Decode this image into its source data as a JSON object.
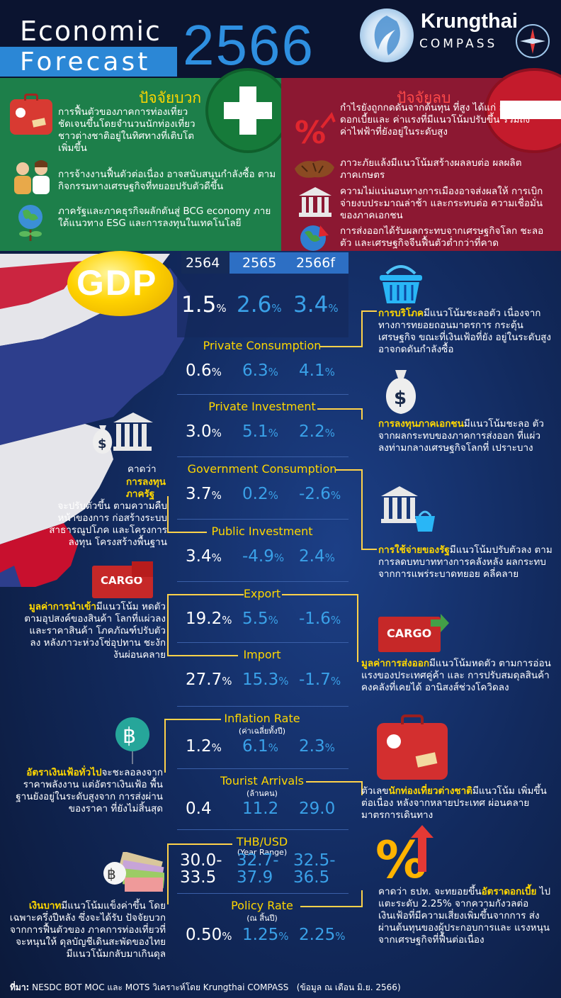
{
  "header": {
    "title_line1": "Economic",
    "title_line2": "Forecast",
    "year": "2566",
    "brand_name": "Krungthai",
    "brand_sub": "COMPASS"
  },
  "positive": {
    "title": "ปัจจัยบวก",
    "items": [
      "การฟื้นตัวของภาคการท่องเที่ยว ชัดเจนขึ้นโดยจำนวนนักท่องเที่ยว ชาวต่างชาติอยู่ในทิศทางที่เติบโต เพิ่มขึ้น",
      "การจ้างงานฟื้นตัวต่อเนื่อง อาจสนับสนุนกำลังซื้อ ตามกิจกรรมทางเศรษฐกิจที่ทยอยปรับตัวดีขึ้น",
      "ภาครัฐและภาคธุรกิจผลักดันสู่ BCG economy ภายใต้แนวทาง ESG และการลงทุนในเทคโนโลยี"
    ]
  },
  "negative": {
    "title": "ปัจจัยลบ",
    "items": [
      "กำไรยังถูกกดดันจากต้นทุน ที่สูง ได้แก่ อัตราดอกเบี้ยและ ค่าแรงที่มีแนวโน้มปรับขึ้น รวมถึง ค่าไฟฟ้าที่ยังอยู่ในระดับสูง",
      "ภาวะภัยแล้งมีแนวโน้มสร้างผลลบต่อ ผลผลิตภาคเกษตร",
      "ความไม่แน่นอนทางการเมืองอาจส่งผลให้ การเบิกจ่ายงบประมาณล่าช้า และกระทบต่อ ความเชื่อมั่นของภาคเอกชน",
      "การส่งออกได้รับผลกระทบจากเศรษฐกิจโลก ชะลอตัว และเศรษฐกิจจีนฟื้นตัวต่ำกว่าที่คาด"
    ]
  },
  "gdp": {
    "badge": "GDP",
    "years": [
      "2564",
      "2565",
      "2566f"
    ],
    "values": [
      "1.5",
      "2.6",
      "3.4"
    ],
    "unit": "%"
  },
  "indicators": [
    {
      "label": "Private Consumption",
      "sub": "",
      "v": [
        "0.6",
        "6.3",
        "4.1"
      ],
      "unit": "%"
    },
    {
      "label": "Private Investment",
      "sub": "",
      "v": [
        "3.0",
        "5.1",
        "2.2"
      ],
      "unit": "%"
    },
    {
      "label": "Government Consumption",
      "sub": "",
      "v": [
        "3.7",
        "0.2",
        "-2.6"
      ],
      "unit": "%"
    },
    {
      "label": "Public Investment",
      "sub": "",
      "v": [
        "3.4",
        "-4.9",
        "2.4"
      ],
      "unit": "%"
    },
    {
      "label": "Export",
      "sub": "",
      "v": [
        "19.2",
        "5.5",
        "-1.6"
      ],
      "unit": "%"
    },
    {
      "label": "Import",
      "sub": "",
      "v": [
        "27.7",
        "15.3",
        "-1.7"
      ],
      "unit": "%"
    },
    {
      "label": "Inflation Rate",
      "sub": "(ค่าเฉลี่ยทั้งปี)",
      "v": [
        "1.2",
        "6.1",
        "2.3"
      ],
      "unit": "%"
    },
    {
      "label": "Tourist Arrivals",
      "sub": "(ล้านคน)",
      "v": [
        "0.4",
        "11.2",
        "29.0"
      ],
      "unit": ""
    },
    {
      "label": "THB/USD",
      "sub": "(Year Range)",
      "v": [
        "30.0-\n33.5",
        "32.7-\n37.9",
        "32.5-\n36.5"
      ],
      "unit": ""
    },
    {
      "label": "Policy Rate",
      "sub": "(ณ สิ้นปี)",
      "v": [
        "0.50",
        "1.25",
        "2.25"
      ],
      "unit": "%"
    }
  ],
  "notes": {
    "consumption_hl": "การบริโภค",
    "consumption": "มีแนวโน้มชะลอตัว เนื่องจากทางการทยอยถอนมาตรการ กระตุ้นเศรษฐกิจ ขณะที่เงินเฟ้อที่ยัง อยู่ในระดับสูงอาจกดดันกำลังซื้อ",
    "pinvest_hl": "การลงทุนภาคเอกชน",
    "pinvest": "มีแนวโน้มชะลอ ตัวจากผลกระทบของภาคการส่งออก ที่แผ่วลงท่ามกลางเศรษฐกิจโลกที่ เปราะบาง",
    "gov_pre": "คาดว่า",
    "gov_hl": "การลงทุน ภาครัฐ",
    "gov": "จะปรับตัวขึ้น ตามความคืบหน้าของการ ก่อสร้างระบบสาธารณูปโภค และโครงการลงทุน โครงสร้างพื้นฐาน",
    "spend_hl": "การใช้จ่ายของรัฐ",
    "spend": "มีแนวโน้มปรับตัวลง ตามการลดบทบาททางการคลังหลัง ผลกระทบจากการแพร่ระบาดทยอย คลี่คลาย",
    "import_hl": "มูลค่าการนำเข้า",
    "import": "มีแนวโน้ม หดตัวตามอุปสงค์ของสินค้า โลกที่แผ่วลง และราคาสินค้า โภคภัณฑ์ปรับตัวลง หลังภาวะห่วงโซ่อุปทาน ชะงักงันผ่อนคลาย",
    "export_hl": "มูลค่าการส่งออก",
    "export": "มีแนวโน้มหดตัว ตามการอ่อนแรงของประเทศคู่ค้า และ การปรับสมดุลสินค้าคงคลังที่เคยได้ อานิสงส์ช่วงโควิดลง",
    "infl_hl": "อัตราเงินเฟ้อทั่วไป",
    "infl": "จะชะลอลงจาก ราคาพลังงาน แต่อัตราเงินเฟ้อ พื้นฐานยังอยู่ในระดับสูงจาก การส่งผ่านของราคา ที่ยังไม่สิ้นสุด",
    "tour_pre": "ตัวเลข",
    "tour_hl": "นักท่องเที่ยวต่างชาติ",
    "tour": "มีแนวโน้ม เพิ่มขึ้นต่อเนื่อง หลังจากหลายประเทศ ผ่อนคลายมาตรการเดินทาง",
    "baht_hl": "เงินบาท",
    "baht": "มีแนวโน้มแข็งค่าขึ้น โดยเฉพาะครึ่งปีหลัง ซึ่งจะได้รับ ปัจจัยบวกจากการฟื้นตัวของ ภาคการท่องเที่ยวที่จะหนุนให้ ดุลบัญชีเดินสะพัดของไทย มีแนวโน้มกลับมาเกินดุล",
    "rate_pre": "คาดว่า ธปท. จะทยอยขึ้น",
    "rate_hl": "อัตราดอกเบี้ย",
    "rate": " ไปแตะระดับ 2.25% จากความกังวลต่อ เงินเฟ้อที่มีความเสี่ยงเพิ่มขึ้นจากการ ส่งผ่านต้นทุนของผู้ประกอบการและ แรงหนุนจากเศรษฐกิจที่ฟื้นต่อเนื่อง",
    "cargo": "CARGO"
  },
  "footer": {
    "src_label": "ที่มา:",
    "src": " NESDC BOT MOC และ MOTS วิเคราะห์โดย Krungthai COMPASS",
    "date": "(ข้อมูล ณ เดือน มิ.ย. 2566)"
  },
  "colors": {
    "accent": "#2e8fe0",
    "gold": "#ffd700",
    "green": "#1d7f4a",
    "red": "#8c1832",
    "navy": "#0d1b3e"
  }
}
